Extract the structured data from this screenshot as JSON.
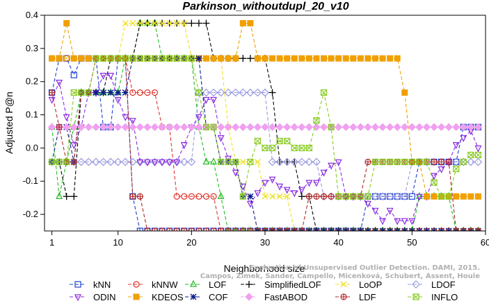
{
  "chart_data": {
    "type": "line",
    "title": "Parkinson_withoutdupl_20_v10",
    "xlabel": "Neighborhood size",
    "ylabel": "Adjusted P@n",
    "xlim": [
      0,
      60
    ],
    "ylim": [
      -0.25,
      0.4
    ],
    "xticks": [
      1,
      10,
      20,
      30,
      40,
      50,
      60
    ],
    "yticks": [
      -0.2,
      -0.1,
      0.0,
      0.1,
      0.2,
      0.3,
      0.4
    ],
    "grid": false,
    "credit_line1": "Campos, Zimek, Sander, Campello, Micenková, Schubert, Assent, Houle",
    "credit_line2": "Evaluation of Unsupervised Outlier Detection. DAMI, 2015.",
    "legend_position": "bottom",
    "series": [
      {
        "name": "kNN",
        "color": "#1a3fd0",
        "marker": "square",
        "values": [
          0.167,
          0.27,
          0.27,
          0.22,
          0.27,
          0.27,
          0.27,
          0.063,
          0.063,
          0.27,
          0.27,
          -0.146,
          -0.25,
          -0.25,
          -0.25,
          -0.25,
          -0.25,
          -0.25,
          -0.25,
          -0.25,
          -0.25,
          -0.25,
          -0.25,
          -0.25,
          -0.25,
          -0.25,
          -0.25,
          -0.25,
          -0.25,
          -0.25,
          -0.25,
          -0.25,
          -0.25,
          -0.25,
          -0.25,
          -0.25,
          -0.25,
          -0.25,
          -0.25,
          -0.25,
          -0.25,
          -0.25,
          -0.25,
          -0.146,
          -0.146,
          -0.146,
          -0.146,
          -0.146,
          -0.146,
          -0.146,
          -0.042,
          -0.042,
          -0.042,
          -0.042,
          -0.042,
          -0.042,
          0.063,
          0.063,
          0.063
        ]
      },
      {
        "name": "kNNW",
        "color": "#e0302a",
        "marker": "circle",
        "values": [
          0.27,
          0.27,
          0.27,
          0.27,
          0.27,
          0.27,
          0.27,
          0.27,
          0.27,
          0.27,
          0.27,
          0.167,
          0.167,
          0.167,
          0.167,
          0.063,
          0.063,
          -0.146,
          -0.146,
          -0.146,
          -0.146,
          -0.146,
          -0.146,
          -0.25,
          -0.25,
          -0.25,
          -0.25,
          -0.25,
          -0.25,
          -0.25,
          -0.25,
          -0.25,
          -0.25,
          -0.25,
          -0.25,
          -0.25,
          -0.25,
          -0.25,
          -0.25,
          -0.25,
          -0.25,
          -0.25,
          -0.25,
          -0.25,
          -0.25,
          -0.25,
          -0.25,
          -0.25,
          -0.25,
          -0.25,
          -0.25,
          -0.25,
          -0.25,
          -0.25,
          -0.25,
          -0.25,
          -0.25,
          -0.25,
          -0.25
        ]
      },
      {
        "name": "LOF",
        "color": "#22bb22",
        "marker": "triangle-up",
        "values": [
          0.063,
          -0.146,
          -0.042,
          0.063,
          0.167,
          0.167,
          0.167,
          0.167,
          0.167,
          0.167,
          0.27,
          0.27,
          0.376,
          0.376,
          0.376,
          0.27,
          0.27,
          0.27,
          0.27,
          0.27,
          0.063,
          -0.042,
          -0.042,
          -0.146,
          -0.25,
          -0.25,
          -0.25,
          -0.25,
          -0.25,
          -0.25,
          -0.25,
          -0.25,
          -0.25,
          -0.25,
          -0.25,
          -0.25,
          -0.25,
          -0.25,
          -0.25,
          -0.25,
          -0.25,
          -0.25,
          -0.25,
          -0.25,
          -0.25,
          -0.25,
          -0.25,
          -0.25,
          -0.25,
          -0.25,
          -0.146,
          -0.146,
          -0.146,
          -0.146,
          -0.146,
          -0.25,
          -0.25,
          -0.25,
          -0.25
        ]
      },
      {
        "name": "SimplifiedLOF",
        "color": "#000000",
        "marker": "plus",
        "values": [
          -0.042,
          -0.042,
          -0.146,
          -0.146,
          0.167,
          0.167,
          0.167,
          0.167,
          0.27,
          0.27,
          0.27,
          0.27,
          0.376,
          0.376,
          0.376,
          0.376,
          0.376,
          0.376,
          0.376,
          0.376,
          0.376,
          0.376,
          0.27,
          0.27,
          0.27,
          0.27,
          0.27,
          0.27,
          0.27,
          0.27,
          0.167,
          -0.042,
          -0.042,
          -0.042,
          -0.146,
          -0.146,
          -0.25,
          -0.25,
          -0.25,
          -0.25,
          -0.25,
          -0.25,
          -0.25,
          -0.25,
          -0.25,
          -0.25,
          -0.25,
          -0.25,
          -0.25,
          -0.25,
          -0.25,
          -0.25,
          -0.25,
          -0.25,
          -0.25,
          -0.25,
          -0.25,
          -0.25,
          -0.25
        ]
      },
      {
        "name": "LoOP",
        "color": "#f0e020",
        "marker": "x",
        "values": [
          0.27,
          0.27,
          0.27,
          0.27,
          0.27,
          0.27,
          0.27,
          0.27,
          0.27,
          0.27,
          0.376,
          0.376,
          0.376,
          0.376,
          0.376,
          0.376,
          0.376,
          0.376,
          0.376,
          0.27,
          0.27,
          0.27,
          0.27,
          0.27,
          0.063,
          -0.042,
          -0.042,
          -0.042,
          -0.042,
          -0.146,
          -0.146,
          -0.146,
          -0.146,
          -0.25,
          -0.25,
          -0.25,
          -0.25,
          -0.25,
          -0.25,
          -0.25,
          -0.25,
          -0.25,
          -0.25,
          -0.25,
          -0.25,
          -0.25,
          -0.25,
          -0.25,
          -0.25,
          -0.25,
          -0.25,
          -0.25,
          -0.25,
          -0.25,
          -0.25,
          -0.25,
          -0.25,
          -0.25,
          -0.25
        ]
      },
      {
        "name": "LDOF",
        "color": "#9a9ae0",
        "marker": "diamond",
        "values": [
          -0.042,
          -0.042,
          -0.042,
          -0.042,
          -0.042,
          -0.042,
          -0.042,
          -0.042,
          -0.042,
          -0.042,
          -0.042,
          -0.042,
          -0.042,
          -0.042,
          -0.042,
          -0.042,
          -0.042,
          -0.042,
          -0.042,
          -0.042,
          0.167,
          0.167,
          0.167,
          0.167,
          0.167,
          0.167,
          0.167,
          0.167,
          0.167,
          0.167,
          -0.042,
          -0.042,
          -0.042,
          -0.042,
          -0.042,
          -0.042,
          -0.042,
          -0.146,
          -0.146,
          -0.146,
          -0.146,
          -0.146,
          -0.146,
          -0.146,
          -0.146,
          -0.146,
          -0.146,
          -0.146,
          -0.146,
          -0.042,
          -0.042,
          -0.042,
          -0.042,
          -0.042,
          -0.042,
          -0.042,
          -0.042,
          -0.042,
          -0.042
        ]
      },
      {
        "name": "ODIN",
        "color": "#8a2be2",
        "marker": "triangle-down",
        "values": [
          0.146,
          0.198,
          0.094,
          0.01,
          0.063,
          0.167,
          0.167,
          0.219,
          0.219,
          0.146,
          0.094,
          0.083,
          -0.042,
          -0.042,
          -0.042,
          -0.042,
          -0.042,
          -0.042,
          0.01,
          0.063,
          0.094,
          0.146,
          0.146,
          0.031,
          -0.031,
          -0.073,
          -0.115,
          -0.167,
          -0.135,
          -0.104,
          -0.094,
          -0.115,
          -0.125,
          -0.135,
          -0.125,
          -0.104,
          -0.104,
          -0.073,
          -0.052,
          -0.042,
          -0.146,
          -0.146,
          -0.146,
          -0.167,
          -0.188,
          -0.219,
          -0.188,
          -0.219,
          -0.219,
          -0.219,
          -0.146,
          -0.146,
          -0.083,
          -0.063,
          -0.042,
          0.01,
          0.031,
          0.052,
          0.0
        ]
      },
      {
        "name": "KDEOS",
        "color": "#f0a000",
        "marker": "square-filled",
        "values": [
          0.27,
          0.27,
          0.376,
          0.27,
          0.27,
          0.27,
          0.27,
          0.27,
          0.27,
          0.27,
          0.27,
          0.27,
          0.27,
          0.27,
          0.27,
          0.27,
          0.27,
          0.27,
          0.27,
          0.27,
          0.27,
          0.27,
          0.27,
          0.27,
          0.27,
          0.27,
          0.376,
          0.376,
          0.27,
          0.27,
          0.27,
          0.27,
          0.27,
          0.27,
          0.27,
          0.27,
          0.27,
          0.27,
          0.27,
          0.27,
          0.27,
          0.27,
          0.27,
          0.27,
          0.27,
          0.27,
          0.27,
          0.27,
          0.167,
          -0.042,
          -0.042,
          -0.146,
          -0.146,
          -0.146,
          -0.146,
          -0.146,
          -0.146,
          -0.146,
          -0.146
        ]
      },
      {
        "name": "COF",
        "color": "#0a1a8a",
        "marker": "asterisk",
        "values": [
          -0.042,
          0.063,
          0.063,
          -0.042,
          0.167,
          0.167,
          0.167,
          0.167,
          0.167,
          0.167,
          0.167,
          0.27,
          0.27,
          0.27,
          0.27,
          0.27,
          0.27,
          0.27,
          0.27,
          0.27,
          0.27,
          0.063,
          0.063,
          -0.042,
          -0.042,
          -0.042,
          -0.146,
          -0.146,
          -0.25,
          -0.25,
          -0.25,
          -0.25,
          -0.25,
          -0.25,
          -0.25,
          -0.25,
          -0.25,
          -0.25,
          -0.25,
          -0.25,
          -0.25,
          -0.25,
          -0.25,
          -0.25,
          -0.25,
          -0.25,
          -0.25,
          -0.25,
          -0.25,
          -0.25,
          -0.25,
          -0.25,
          -0.25,
          -0.25,
          -0.25,
          -0.25,
          -0.25,
          -0.25,
          -0.25
        ]
      },
      {
        "name": "FastABOD",
        "color": "#f0a0f0",
        "marker": "diamond-filled",
        "values": [
          0.063,
          0.063,
          0.063,
          0.063,
          0.063,
          0.063,
          0.063,
          0.063,
          0.063,
          0.063,
          0.063,
          0.063,
          0.063,
          0.063,
          0.063,
          0.063,
          0.063,
          0.063,
          0.063,
          0.063,
          0.063,
          0.063,
          0.063,
          0.063,
          0.063,
          0.063,
          0.063,
          0.063,
          0.063,
          0.063,
          0.063,
          0.063,
          0.063,
          0.063,
          0.063,
          0.063,
          0.063,
          0.063,
          0.063,
          0.063,
          0.063,
          0.063,
          0.063,
          0.063,
          0.063,
          0.063,
          0.063,
          0.063,
          0.063,
          0.063,
          0.063,
          0.063,
          0.063,
          0.063,
          0.063,
          0.063,
          0.063,
          0.063,
          0.063
        ]
      },
      {
        "name": "LDF",
        "color": "#b02828",
        "marker": "circle-plus",
        "values": [
          0.167,
          0.063,
          -0.042,
          -0.042,
          0.167,
          0.167,
          0.27,
          0.27,
          0.27,
          0.27,
          0.27,
          -0.146,
          -0.146,
          -0.25,
          -0.25,
          -0.25,
          -0.25,
          -0.25,
          -0.25,
          -0.25,
          -0.25,
          -0.25,
          -0.25,
          -0.25,
          -0.25,
          -0.25,
          -0.25,
          -0.25,
          -0.25,
          -0.25,
          -0.25,
          -0.25,
          -0.25,
          -0.25,
          -0.25,
          -0.146,
          -0.146,
          -0.146,
          -0.146,
          -0.146,
          -0.146,
          -0.146,
          -0.146,
          -0.042,
          -0.042,
          -0.042,
          -0.042,
          -0.042,
          -0.042,
          -0.042,
          -0.042,
          -0.042,
          -0.042,
          -0.042,
          -0.042,
          -0.25,
          -0.25,
          -0.25,
          -0.25
        ]
      },
      {
        "name": "INFLO",
        "color": "#88cc22",
        "marker": "cross-square",
        "values": [
          -0.042,
          -0.042,
          -0.042,
          0.167,
          0.167,
          0.167,
          0.27,
          0.27,
          0.27,
          0.27,
          0.27,
          0.27,
          0.27,
          0.27,
          0.27,
          0.27,
          0.27,
          0.27,
          0.27,
          0.27,
          0.167,
          0.063,
          0.063,
          -0.042,
          -0.042,
          -0.042,
          -0.146,
          -0.042,
          0.021,
          0.0,
          0.0,
          0.021,
          0.021,
          0.0,
          0.0,
          0.0,
          0.083,
          0.167,
          0.063,
          -0.146,
          -0.146,
          -0.146,
          -0.146,
          -0.146,
          -0.042,
          -0.042,
          -0.042,
          -0.042,
          -0.042,
          -0.042,
          -0.042,
          -0.042,
          -0.104,
          -0.146,
          -0.146,
          -0.063,
          -0.042,
          -0.021,
          -0.021
        ]
      }
    ]
  }
}
